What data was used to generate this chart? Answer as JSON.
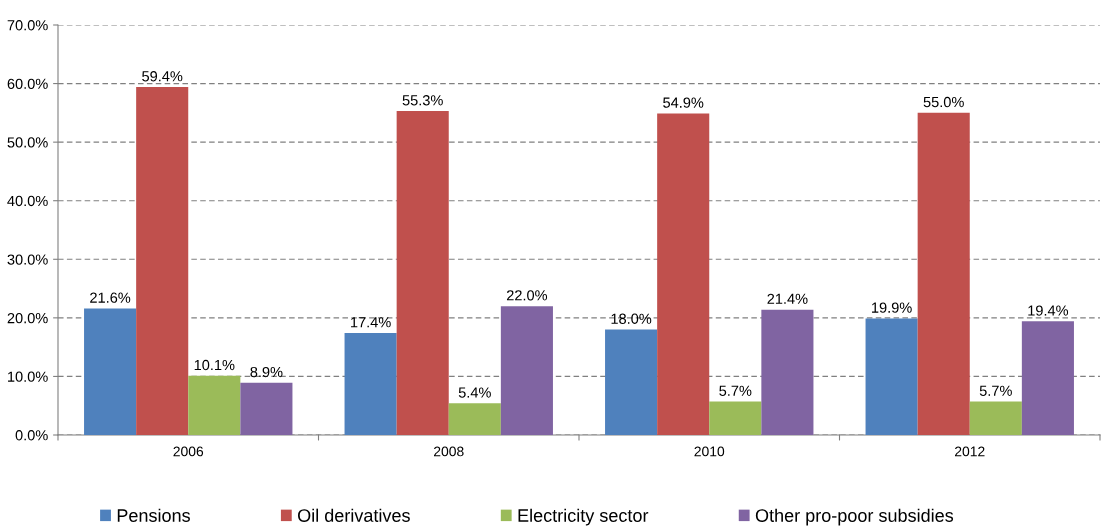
{
  "chart_data": {
    "type": "bar",
    "categories": [
      "2006",
      "2008",
      "2010",
      "2012"
    ],
    "series": [
      {
        "name": "Pensions",
        "color": "#4f81bd",
        "values": [
          21.6,
          17.4,
          18.0,
          19.9
        ],
        "value_labels": [
          "21.6%",
          "17.4%",
          "18.0%",
          "19.9%"
        ]
      },
      {
        "name": "Oil derivatives",
        "color": "#c0504d",
        "values": [
          59.4,
          55.3,
          54.9,
          55.0
        ],
        "value_labels": [
          "59.4%",
          "55.3%",
          "54.9%",
          "55.0%"
        ]
      },
      {
        "name": "Electricity sector",
        "color": "#9bbb59",
        "values": [
          10.1,
          5.4,
          5.7,
          5.7
        ],
        "value_labels": [
          "10.1%",
          "5.4%",
          "5.7%",
          "5.7%"
        ]
      },
      {
        "name": "Other pro-poor subsidies",
        "color": "#8064a2",
        "values": [
          8.9,
          22.0,
          21.4,
          19.4
        ],
        "value_labels": [
          "8.9%",
          "22.0%",
          "21.4%",
          "19.4%"
        ]
      }
    ],
    "ylim": [
      0,
      70
    ],
    "yticks": [
      {
        "value": 0,
        "label": "0.0%"
      },
      {
        "value": 10,
        "label": "10.0%"
      },
      {
        "value": 20,
        "label": "20.0%"
      },
      {
        "value": 30,
        "label": "30.0%"
      },
      {
        "value": 40,
        "label": "40.0%"
      },
      {
        "value": 50,
        "label": "50.0%"
      },
      {
        "value": 60,
        "label": "60.0%"
      },
      {
        "value": 70,
        "label": "70.0%"
      }
    ],
    "grid": "y",
    "legend": "bottom"
  }
}
